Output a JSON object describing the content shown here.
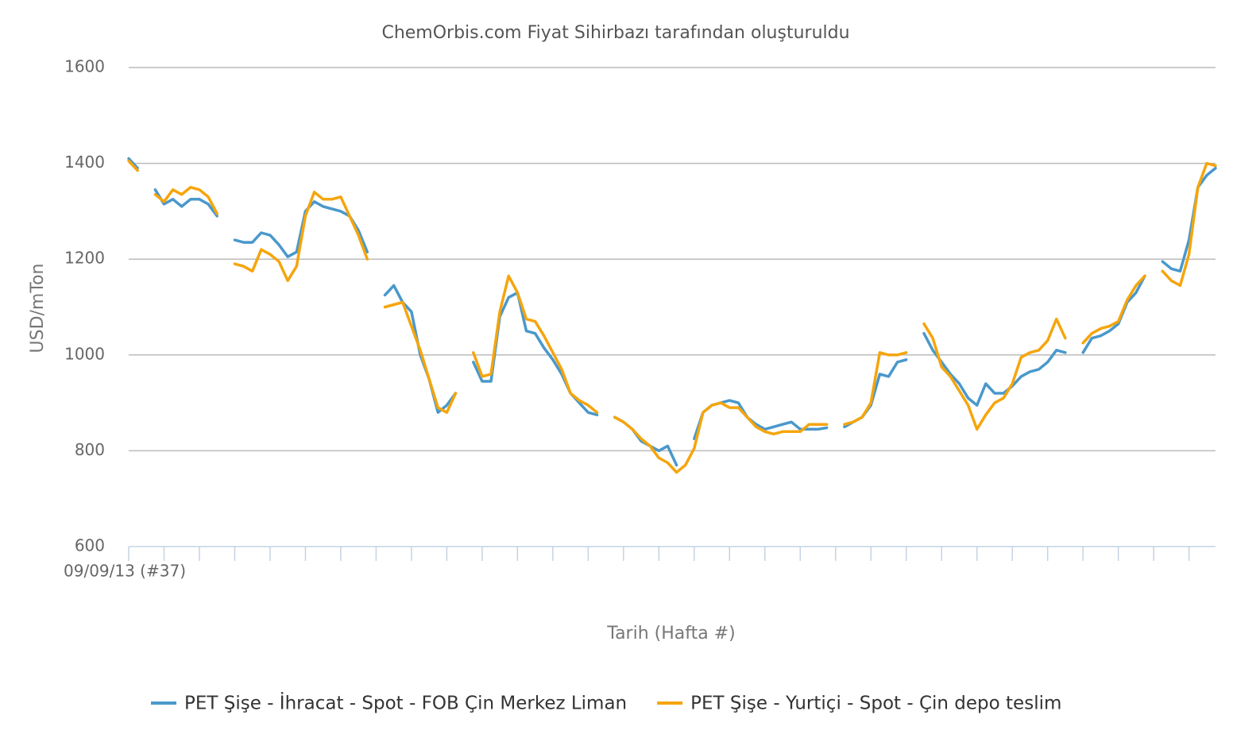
{
  "chart_data": {
    "type": "line",
    "title": "ChemOrbis.com Fiyat Sihirbazı tarafından oluşturuldu",
    "y_label": "USD/mTon",
    "x_label": "Tarih (Hafta #)",
    "categories": [
      "09/09/13 (#37)",
      null,
      null,
      null,
      null,
      null,
      null,
      null,
      null,
      null,
      null,
      null,
      null,
      null,
      null,
      null,
      null,
      null,
      null,
      null,
      null,
      null,
      null,
      null,
      null,
      null,
      null,
      null,
      null,
      null,
      null,
      null,
      null,
      null,
      null,
      null,
      null,
      null,
      null,
      null,
      null,
      null,
      null,
      null,
      null,
      null,
      null,
      null,
      null,
      null,
      null,
      null,
      null,
      null,
      null,
      null,
      null,
      null,
      null,
      null,
      null,
      null,
      null,
      null,
      null,
      null,
      null,
      null,
      null,
      null,
      null,
      null,
      null,
      null,
      null,
      null,
      null,
      null,
      null,
      null,
      null,
      null,
      null,
      null,
      null,
      null,
      null,
      null,
      null,
      null,
      null,
      null,
      null,
      null,
      null,
      null,
      null,
      null,
      null,
      null,
      null,
      null,
      null,
      null,
      null,
      null,
      null,
      null,
      null,
      null,
      null,
      null,
      null,
      null,
      null,
      null,
      null,
      null,
      null,
      null,
      null,
      null,
      null,
      null
    ],
    "series": [
      {
        "name": "PET Şişe - İhracat - Spot - FOB Çin Merkez Liman",
        "color": "#4a98cb",
        "values": [
          1410,
          1390,
          null,
          1345,
          1315,
          1325,
          1310,
          1325,
          1325,
          1315,
          1290,
          null,
          1240,
          1235,
          1235,
          1255,
          1250,
          1230,
          1205,
          1215,
          1300,
          1320,
          1310,
          1305,
          1300,
          1290,
          1260,
          1215,
          null,
          1125,
          1145,
          1110,
          1090,
          1000,
          950,
          880,
          895,
          920,
          null,
          985,
          945,
          945,
          1080,
          1120,
          1130,
          1050,
          1045,
          1015,
          990,
          960,
          920,
          900,
          880,
          875,
          null,
          870,
          860,
          845,
          820,
          810,
          800,
          810,
          770,
          null,
          825,
          880,
          895,
          900,
          905,
          900,
          870,
          855,
          845,
          850,
          855,
          860,
          845,
          845,
          845,
          848,
          null,
          850,
          860,
          870,
          895,
          960,
          955,
          985,
          990,
          null,
          1045,
          1010,
          985,
          960,
          940,
          910,
          895,
          940,
          920,
          920,
          935,
          955,
          965,
          970,
          985,
          1010,
          1005,
          null,
          1005,
          1035,
          1040,
          1050,
          1065,
          1110,
          1130,
          1165,
          null,
          1195,
          1180,
          1175,
          1240,
          1350,
          1375,
          1390
        ]
      },
      {
        "name": "PET Şişe - Yurtiçi - Spot - Çin depo teslim",
        "color": "#f5a50d",
        "values": [
          1405,
          1385,
          null,
          1335,
          1320,
          1345,
          1335,
          1350,
          1345,
          1330,
          1295,
          null,
          1190,
          1185,
          1175,
          1220,
          1210,
          1195,
          1155,
          1185,
          1290,
          1340,
          1325,
          1325,
          1330,
          1290,
          1250,
          1200,
          null,
          1100,
          1105,
          1110,
          1060,
          1010,
          950,
          890,
          880,
          920,
          null,
          1005,
          955,
          960,
          1090,
          1165,
          1130,
          1075,
          1070,
          1040,
          1005,
          970,
          920,
          905,
          895,
          880,
          null,
          870,
          860,
          845,
          825,
          810,
          785,
          775,
          755,
          770,
          805,
          880,
          895,
          900,
          890,
          890,
          870,
          850,
          840,
          835,
          840,
          840,
          840,
          855,
          855,
          855,
          null,
          855,
          860,
          870,
          900,
          1005,
          1000,
          1000,
          1005,
          null,
          1065,
          1035,
          975,
          955,
          925,
          895,
          845,
          875,
          900,
          910,
          940,
          995,
          1005,
          1010,
          1030,
          1075,
          1035,
          null,
          1025,
          1045,
          1055,
          1060,
          1070,
          1115,
          1145,
          1165,
          null,
          1175,
          1155,
          1145,
          1210,
          1350,
          1400,
          1395
        ]
      }
    ],
    "ylim": [
      600,
      1600
    ],
    "yticks": [
      600,
      800,
      1000,
      1200,
      1400,
      1600
    ],
    "grid": true,
    "legend": "bottom"
  }
}
